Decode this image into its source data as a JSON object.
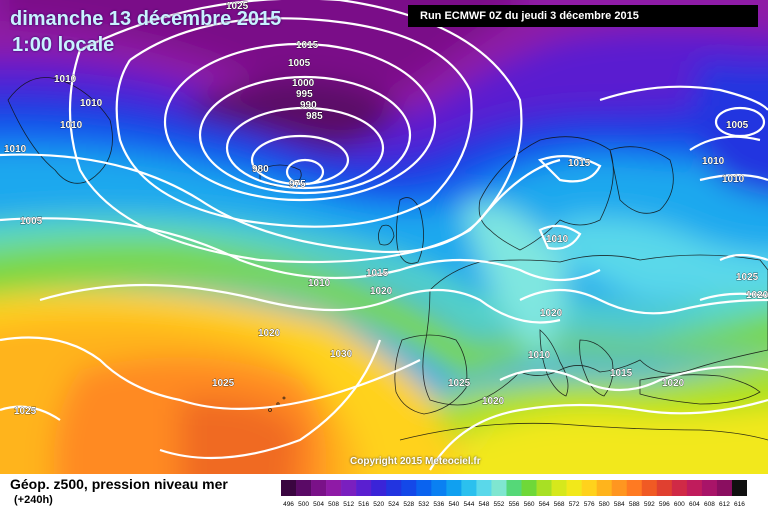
{
  "header": {
    "date": "dimanche 13 décembre 2015",
    "time": "1:00 locale",
    "run": "Run ECMWF 0Z du jeudi 3 décembre 2015"
  },
  "copyright": "Copyright 2015 Meteociel.fr",
  "legend": {
    "title": "Géop. z500, pression niveau mer",
    "range": "(+240h)",
    "scale_labels": [
      "496",
      "500",
      "504",
      "508",
      "512",
      "516",
      "520",
      "524",
      "528",
      "532",
      "536",
      "540",
      "544",
      "548",
      "552",
      "556",
      "560",
      "564",
      "568",
      "572",
      "576",
      "580",
      "584",
      "588",
      "592",
      "596",
      "600",
      "604",
      "608",
      "612",
      "616"
    ],
    "scale_colors": [
      "#3a0540",
      "#5a0a66",
      "#7a1188",
      "#8f1aa6",
      "#7a1fbf",
      "#5a1fd0",
      "#3a24d8",
      "#2234e0",
      "#1448e8",
      "#0a63ef",
      "#0a80f2",
      "#10a0f0",
      "#2bc0ee",
      "#5ad8ea",
      "#7fe6d0",
      "#55d878",
      "#6fd838",
      "#a8e024",
      "#d6e81c",
      "#f2e81a",
      "#ffd21c",
      "#ffb41c",
      "#ff9620",
      "#ff7a22",
      "#f05a24",
      "#e04030",
      "#d02a46",
      "#c01c5c",
      "#a81468",
      "#8a0e60",
      "#101010"
    ]
  },
  "isobar_labels": {
    "l1025_top": "1025",
    "l1015_a": "1015",
    "l1005_a": "1005",
    "l1000": "1000",
    "l995": "995",
    "l990": "990",
    "l985": "985",
    "l980": "980",
    "l975": "975",
    "l1010_a": "1010",
    "l1010_b": "1010",
    "l1010_c": "1010",
    "l1010_d": "1010",
    "l1005_b": "1005",
    "l1015_b": "1015",
    "l1010_e": "1010",
    "l1005_c": "1005",
    "l1010_f": "1010",
    "l1010_g": "1010",
    "l1015_c": "1015",
    "l1010_h": "1010",
    "l1020_a": "1020",
    "l1025_b": "1025",
    "l1020_b": "1020",
    "l1020_c": "1020",
    "l1030": "1030",
    "l1020_d": "1020",
    "l1010_i": "1010",
    "l1025_c": "1025",
    "l1025_d": "1025",
    "l1020_e": "1020",
    "l1015_d": "1015",
    "l1020_f": "1020",
    "l1025_e": "1025"
  }
}
